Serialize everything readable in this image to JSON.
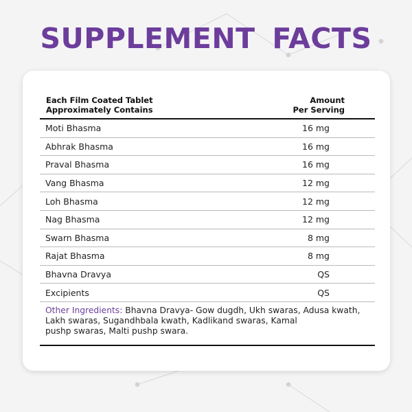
{
  "title": "SUPPLEMENT  FACTS",
  "colors": {
    "accent": "#6c3d9b"
  },
  "table": {
    "header_left": [
      "Each Film Coated Tablet",
      "Approximately Contains"
    ],
    "header_right": [
      "Amount",
      "Per Serving"
    ],
    "rows": [
      {
        "name": "Moti Bhasma",
        "amount": "16 mg"
      },
      {
        "name": "Abhrak Bhasma",
        "amount": "16 mg"
      },
      {
        "name": "Praval Bhasma",
        "amount": "16 mg"
      },
      {
        "name": "Vang Bhasma",
        "amount": "12 mg"
      },
      {
        "name": "Loh Bhasma",
        "amount": "12 mg"
      },
      {
        "name": "Nag Bhasma",
        "amount": "12 mg"
      },
      {
        "name": "Swarn Bhasma",
        "amount": "8 mg"
      },
      {
        "name": "Rajat Bhasma",
        "amount": "8 mg"
      },
      {
        "name": "Bhavna Dravya",
        "amount": "QS"
      },
      {
        "name": "Excipients",
        "amount": "QS"
      }
    ]
  },
  "other_ingredients": {
    "label": "Other Ingredients:",
    "lines": [
      " Bhavna Dravya- Gow dugdh, Ukh swaras, Adusa kwath,",
      "Lakh swaras, Sugandhbala kwath, Kadlikand swaras, Kamal",
      "pushp swaras, Malti pushp swara."
    ]
  }
}
